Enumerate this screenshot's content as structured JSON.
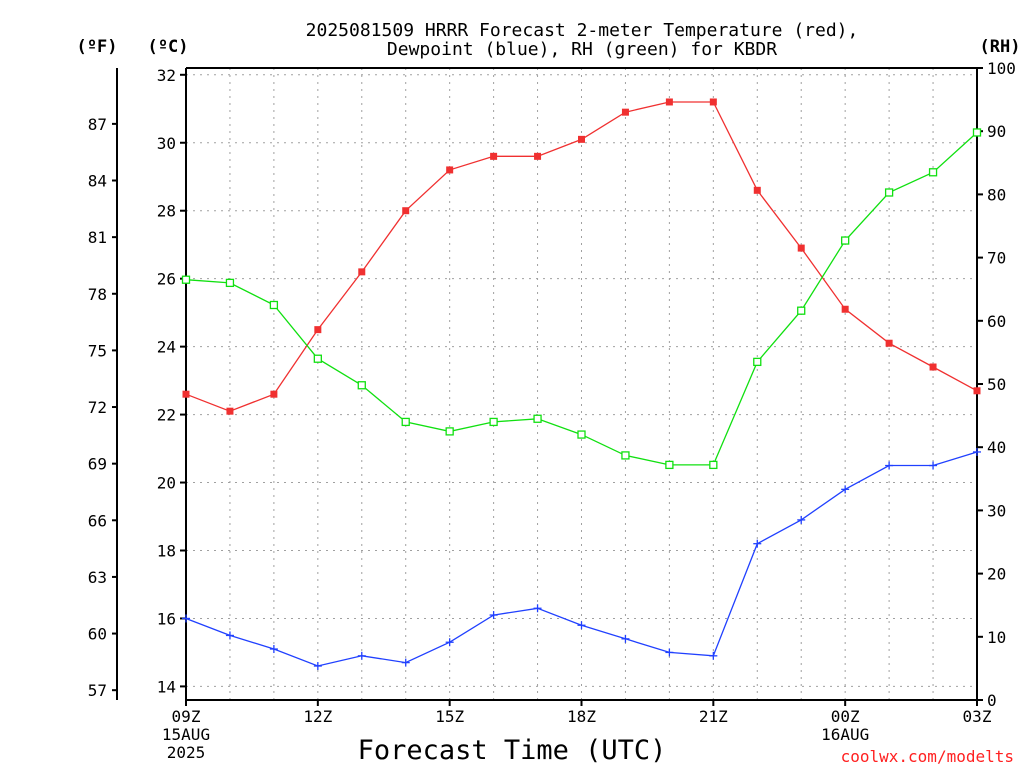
{
  "title_line1": "2025081509 HRRR Forecast 2-meter Temperature (red),",
  "title_line2": "Dewpoint (blue), RH (green) for KBDR",
  "unit_f": "(ºF)",
  "unit_c": "(ºC)",
  "unit_rh": "(RH)",
  "xlabel": "Forecast Time (UTC)",
  "credit": "coolwx.com/modelts",
  "colors": {
    "temperature": "#f03030",
    "dewpoint": "#2040ff",
    "rh": "#10e010"
  },
  "chart_data": {
    "type": "line",
    "x": [
      "09Z",
      "10Z",
      "11Z",
      "12Z",
      "13Z",
      "14Z",
      "15Z",
      "16Z",
      "17Z",
      "18Z",
      "19Z",
      "20Z",
      "21Z",
      "22Z",
      "23Z",
      "00Z",
      "01Z",
      "02Z",
      "03Z"
    ],
    "x_tick_labels": [
      {
        "hour": "09Z",
        "lines": [
          "09Z",
          "15AUG",
          "2025"
        ]
      },
      {
        "hour": "12Z",
        "lines": [
          "12Z"
        ]
      },
      {
        "hour": "15Z",
        "lines": [
          "15Z"
        ]
      },
      {
        "hour": "18Z",
        "lines": [
          "18Z"
        ]
      },
      {
        "hour": "21Z",
        "lines": [
          "21Z"
        ]
      },
      {
        "hour": "00Z",
        "lines": [
          "00Z",
          "16AUG"
        ]
      },
      {
        "hour": "03Z",
        "lines": [
          "03Z"
        ]
      }
    ],
    "celsius_ticks": [
      14,
      16,
      18,
      20,
      22,
      24,
      26,
      28,
      30,
      32
    ],
    "fahrenheit_ticks": [
      57,
      60,
      63,
      66,
      69,
      72,
      75,
      78,
      81,
      84,
      87
    ],
    "rh_ticks": [
      0,
      10,
      20,
      30,
      40,
      50,
      60,
      70,
      80,
      90,
      100
    ],
    "ylim_c": [
      13.6,
      32.2
    ],
    "ylim_rh": [
      0,
      100
    ],
    "grid": true,
    "series": [
      {
        "key": "temperature",
        "axis": "c",
        "marker": "filled-square",
        "values": [
          22.6,
          22.1,
          22.6,
          24.5,
          26.2,
          28.0,
          29.2,
          29.6,
          29.6,
          30.1,
          30.9,
          31.2,
          31.2,
          28.6,
          26.9,
          25.1,
          24.1,
          23.4,
          22.7
        ]
      },
      {
        "key": "dewpoint",
        "axis": "c",
        "marker": "plus",
        "values": [
          16.0,
          15.5,
          15.1,
          14.6,
          14.9,
          14.7,
          15.3,
          16.1,
          16.3,
          15.8,
          15.4,
          15.0,
          14.9,
          18.2,
          18.9,
          19.8,
          20.5,
          20.5,
          20.9
        ]
      },
      {
        "key": "rh",
        "axis": "rh",
        "marker": "open-square",
        "values": [
          66.5,
          66.0,
          62.5,
          54.0,
          49.8,
          44.0,
          42.5,
          44.0,
          44.5,
          42.0,
          38.7,
          37.2,
          37.2,
          53.5,
          61.6,
          72.7,
          80.3,
          83.5,
          89.8
        ]
      }
    ]
  }
}
